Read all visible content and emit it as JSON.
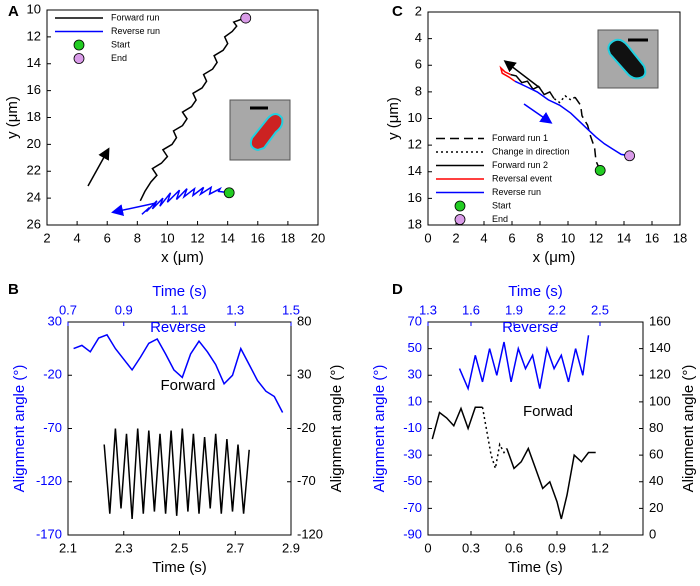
{
  "chart_data": [
    {
      "type": "line",
      "panel": "A",
      "xlabel": "x (μm)",
      "ylabel": "y (μm)",
      "xlim": [
        2,
        20
      ],
      "xticks": [
        2,
        4,
        6,
        8,
        10,
        12,
        14,
        16,
        18,
        20
      ],
      "ylim": [
        26,
        10
      ],
      "yticks": [
        10,
        12,
        14,
        16,
        18,
        20,
        22,
        24,
        26
      ],
      "legend": "upper left",
      "series": [
        {
          "name": "Forward run",
          "color": "#000000",
          "dash": "solid",
          "x": [
            8.2,
            8.5,
            8.9,
            9.3,
            9.0,
            9.6,
            10.0,
            9.7,
            10.3,
            10.6,
            10.4,
            11.0,
            11.3,
            11.0,
            11.6,
            11.9,
            11.7,
            12.3,
            12.6,
            12.4,
            13.0,
            13.3,
            13.1,
            13.7,
            14.0,
            13.8,
            14.3,
            14.6,
            14.4,
            14.9,
            15.2
          ],
          "values": [
            24.2,
            23.5,
            22.8,
            22.3,
            21.8,
            21.4,
            20.9,
            20.4,
            20.0,
            19.5,
            19.0,
            18.6,
            18.1,
            17.6,
            17.2,
            16.7,
            16.2,
            15.8,
            15.3,
            14.8,
            14.4,
            13.9,
            13.4,
            13.0,
            12.5,
            12.0,
            11.6,
            11.2,
            10.9,
            10.7,
            10.6
          ]
        },
        {
          "name": "Reverse run",
          "color": "#0000ff",
          "dash": "solid",
          "x": [
            8.3,
            8.8,
            8.6,
            9.3,
            9.0,
            9.7,
            9.5,
            10.2,
            10.0,
            10.8,
            10.6,
            11.3,
            11.1,
            11.8,
            11.7,
            12.4,
            12.2,
            12.9,
            12.8,
            13.5,
            13.4,
            14.1
          ],
          "values": [
            25.2,
            24.7,
            25.0,
            24.2,
            24.8,
            24.0,
            24.6,
            23.6,
            24.3,
            23.4,
            24.1,
            23.3,
            23.9,
            23.3,
            23.8,
            23.2,
            23.7,
            23.2,
            23.7,
            23.3,
            23.5,
            23.6
          ]
        },
        {
          "name": "Start",
          "color": "#22cc22",
          "mode": "markers",
          "x": [
            14.1
          ],
          "values": [
            23.6
          ]
        },
        {
          "name": "End",
          "color": "#d99be8",
          "mode": "markers",
          "x": [
            15.2
          ],
          "values": [
            10.6
          ]
        }
      ]
    },
    {
      "type": "line",
      "panel": "B",
      "xlabel": "Time (s)",
      "x2label": "Time (s)",
      "ylabel": "Alignment angle (°)",
      "y2label": "Alignment angle (°)",
      "xlim": [
        2.1,
        2.9
      ],
      "xticks": [
        2.1,
        2.3,
        2.5,
        2.7,
        2.9
      ],
      "x2lim": [
        0.7,
        1.5
      ],
      "x2ticks": [
        0.7,
        0.9,
        1.1,
        1.3,
        1.5
      ],
      "ylim": [
        -170,
        30
      ],
      "yticks": [
        -170,
        -120,
        -70,
        -20,
        30
      ],
      "y2lim": [
        -120,
        80
      ],
      "y2ticks": [
        -120,
        -70,
        -20,
        30,
        80
      ],
      "annotations": [
        "Reverse",
        "Forward"
      ],
      "series": [
        {
          "color": "#0000ff",
          "xaxis": "x2",
          "dash": "solid",
          "x": [
            0.72,
            0.75,
            0.78,
            0.81,
            0.84,
            0.87,
            0.9,
            0.93,
            0.96,
            0.99,
            1.02,
            1.05,
            1.08,
            1.11,
            1.14,
            1.17,
            1.2,
            1.23,
            1.26,
            1.29,
            1.32,
            1.35,
            1.38,
            1.41,
            1.44,
            1.47
          ],
          "values": [
            5,
            8,
            2,
            15,
            18,
            5,
            -5,
            -15,
            -3,
            10,
            14,
            0,
            -15,
            -22,
            0,
            12,
            2,
            -10,
            -28,
            -20,
            5,
            -10,
            -25,
            -35,
            -40,
            -55
          ]
        },
        {
          "color": "#000000",
          "axis": "y2",
          "dash": "solid",
          "x": [
            2.23,
            2.25,
            2.27,
            2.29,
            2.31,
            2.33,
            2.35,
            2.37,
            2.39,
            2.41,
            2.43,
            2.45,
            2.47,
            2.49,
            2.51,
            2.53,
            2.55,
            2.57,
            2.59,
            2.61,
            2.63,
            2.65,
            2.67,
            2.69,
            2.71,
            2.73,
            2.75
          ],
          "values": [
            -35,
            -100,
            -20,
            -95,
            -25,
            -105,
            -20,
            -100,
            -22,
            -98,
            -25,
            -100,
            -22,
            -102,
            -20,
            -98,
            -25,
            -100,
            -28,
            -95,
            -25,
            -100,
            -30,
            -98,
            -35,
            -100,
            -40
          ]
        }
      ]
    },
    {
      "type": "line",
      "panel": "C",
      "xlabel": "x (μm)",
      "ylabel": "y (μm)",
      "xlim": [
        0,
        18
      ],
      "xticks": [
        0,
        2,
        4,
        6,
        8,
        10,
        12,
        14,
        16,
        18
      ],
      "ylim": [
        18,
        2
      ],
      "yticks": [
        2,
        4,
        6,
        8,
        10,
        12,
        14,
        16,
        18
      ],
      "legend": "center left",
      "series": [
        {
          "name": "Forward run 1",
          "color": "#000000",
          "dash": "dashed",
          "x": [
            12.3,
            12.0,
            11.9,
            11.6,
            11.4,
            11.0,
            10.9,
            10.5
          ],
          "values": [
            13.9,
            13.2,
            12.2,
            11.3,
            10.5,
            9.8,
            9.0,
            8.4
          ]
        },
        {
          "name": "Change in direction",
          "color": "#000000",
          "dash": "dotted",
          "x": [
            10.5,
            10.2,
            9.8,
            9.4,
            9.0
          ],
          "values": [
            8.4,
            8.6,
            8.3,
            8.8,
            8.5
          ]
        },
        {
          "name": "Forward run 2",
          "color": "#000000",
          "dash": "solid",
          "x": [
            9.0,
            8.7,
            8.3,
            7.9,
            7.5,
            7.1,
            6.7,
            6.3,
            5.9
          ],
          "values": [
            8.5,
            8.0,
            8.2,
            7.6,
            7.8,
            7.2,
            7.3,
            6.8,
            6.7
          ]
        },
        {
          "name": "Reversal event",
          "color": "#ff0000",
          "dash": "solid",
          "x": [
            5.9,
            5.5,
            5.2,
            5.3,
            5.8,
            6.2
          ],
          "values": [
            6.7,
            6.5,
            6.2,
            6.6,
            6.9,
            7.2
          ]
        },
        {
          "name": "Reverse run",
          "color": "#0000ff",
          "dash": "solid",
          "x": [
            6.2,
            7.0,
            7.8,
            8.6,
            9.4,
            10.2,
            10.8,
            11.4,
            12.0,
            12.6,
            13.2,
            13.8,
            14.4
          ],
          "values": [
            7.2,
            7.6,
            8.0,
            8.6,
            9.0,
            9.6,
            10.2,
            10.8,
            11.4,
            11.9,
            12.3,
            12.7,
            12.8
          ]
        },
        {
          "name": "Start",
          "color": "#22cc22",
          "mode": "markers",
          "x": [
            12.3
          ],
          "values": [
            13.9
          ]
        },
        {
          "name": "End",
          "color": "#d99be8",
          "mode": "markers",
          "x": [
            14.4
          ],
          "values": [
            12.8
          ]
        }
      ]
    },
    {
      "type": "line",
      "panel": "D",
      "xlabel": "Time (s)",
      "x2label": "Time (s)",
      "ylabel": "Alignment angle (°)",
      "y2label": "Alignment angle (°)",
      "xlim": [
        0,
        1.5
      ],
      "xticks": [
        0,
        0.3,
        0.6,
        0.9,
        1.2
      ],
      "x2lim": [
        1.3,
        2.8
      ],
      "x2ticks": [
        1.3,
        1.6,
        1.9,
        2.2,
        2.5
      ],
      "ylim": [
        -90,
        70
      ],
      "yticks": [
        -90,
        -70,
        -50,
        -30,
        -10,
        10,
        30,
        50,
        70
      ],
      "y2lim": [
        0,
        160
      ],
      "y2ticks": [
        0,
        20,
        40,
        60,
        80,
        100,
        120,
        140,
        160
      ],
      "annotations": [
        "Reverse",
        "Forwad"
      ],
      "series": [
        {
          "color": "#0000ff",
          "xaxis": "x2",
          "dash": "solid",
          "x": [
            1.52,
            1.58,
            1.63,
            1.68,
            1.73,
            1.78,
            1.83,
            1.88,
            1.93,
            1.98,
            2.03,
            2.08,
            2.13,
            2.18,
            2.23,
            2.28,
            2.33,
            2.38,
            2.42
          ],
          "values": [
            35,
            20,
            45,
            25,
            50,
            30,
            55,
            25,
            50,
            35,
            45,
            20,
            50,
            35,
            45,
            25,
            50,
            30,
            60
          ]
        },
        {
          "color": "#000000",
          "axis": "y2",
          "dash": "solid",
          "x": [
            0.03,
            0.08,
            0.13,
            0.18,
            0.23,
            0.28,
            0.33,
            0.38,
            0.42,
            0.46,
            0.5,
            0.55,
            0.6,
            0.65,
            0.7,
            0.75,
            0.8,
            0.85,
            0.9,
            0.93,
            0.97,
            1.02,
            1.07,
            1.12,
            1.17
          ],
          "values": [
            72,
            92,
            88,
            82,
            95,
            80,
            96,
            96,
            null,
            null,
            null,
            65,
            50,
            55,
            65,
            50,
            35,
            40,
            25,
            12,
            30,
            60,
            55,
            62,
            62
          ]
        },
        {
          "color": "#000000",
          "axis": "y2",
          "dash": "dotted",
          "x": [
            0.38,
            0.44,
            0.47,
            0.5,
            0.53,
            0.55
          ],
          "values": [
            96,
            60,
            50,
            68,
            62,
            65
          ]
        }
      ]
    }
  ]
}
